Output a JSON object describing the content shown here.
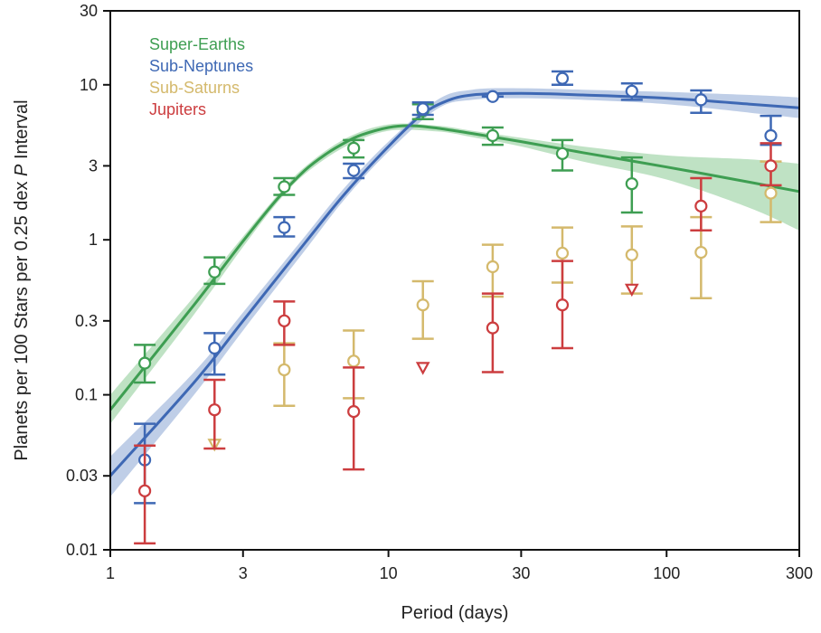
{
  "chart_data": {
    "type": "scatter",
    "xlabel": "Period (days)",
    "ylabel_prefix": "Planets per 100 Stars per 0.25 dex ",
    "ylabel_italic": "P",
    "ylabel_suffix": " Interval",
    "xscale": "log",
    "yscale": "log",
    "xlim": [
      1,
      300
    ],
    "ylim": [
      0.01,
      30
    ],
    "xticks": [
      1,
      3,
      10,
      30,
      100,
      300
    ],
    "xtick_labels": [
      "1",
      "3",
      "10",
      "30",
      "100",
      "300"
    ],
    "yticks": [
      0.01,
      0.03,
      0.1,
      0.3,
      1,
      3,
      10,
      30
    ],
    "ytick_labels": [
      "0.01",
      "0.03",
      "0.1",
      "0.3",
      "1",
      "3",
      "10",
      "30"
    ],
    "grid": false,
    "legend_position": "top-left",
    "series": [
      {
        "name": "Super-Earths",
        "color": "#3e9e52",
        "band_color": "#a9d8b0",
        "points": [
          {
            "x": 1.33,
            "y": 0.16,
            "lo": 0.12,
            "hi": 0.21
          },
          {
            "x": 2.37,
            "y": 0.62,
            "lo": 0.52,
            "hi": 0.77
          },
          {
            "x": 4.22,
            "y": 2.2,
            "lo": 1.95,
            "hi": 2.5
          },
          {
            "x": 7.5,
            "y": 3.9,
            "lo": 3.4,
            "hi": 4.4
          },
          {
            "x": 13.3,
            "y": 6.8,
            "lo": 6.0,
            "hi": 7.5
          },
          {
            "x": 23.7,
            "y": 4.7,
            "lo": 4.1,
            "hi": 5.3
          },
          {
            "x": 42.2,
            "y": 3.6,
            "lo": 2.8,
            "hi": 4.4
          },
          {
            "x": 75,
            "y": 2.3,
            "lo": 1.5,
            "hi": 3.4
          }
        ],
        "fit": [
          [
            1,
            0.08
          ],
          [
            2,
            0.38
          ],
          [
            3,
            0.98
          ],
          [
            4,
            1.85
          ],
          [
            5,
            2.8
          ],
          [
            6,
            3.6
          ],
          [
            7,
            4.25
          ],
          [
            8,
            4.75
          ],
          [
            10,
            5.3
          ],
          [
            12,
            5.45
          ],
          [
            15,
            5.25
          ],
          [
            20,
            4.85
          ],
          [
            30,
            4.3
          ],
          [
            50,
            3.65
          ],
          [
            100,
            2.95
          ],
          [
            200,
            2.35
          ],
          [
            300,
            2.05
          ]
        ],
        "band": [
          [
            1,
            0.1,
            0.065
          ],
          [
            2,
            0.43,
            0.33
          ],
          [
            3,
            1.05,
            0.9
          ],
          [
            4,
            1.95,
            1.75
          ],
          [
            5,
            2.95,
            2.65
          ],
          [
            7,
            4.5,
            4.0
          ],
          [
            10,
            5.55,
            5.05
          ],
          [
            15,
            5.45,
            5.0
          ],
          [
            20,
            5.05,
            4.6
          ],
          [
            30,
            4.55,
            4.0
          ],
          [
            50,
            4.0,
            3.2
          ],
          [
            100,
            3.5,
            2.45
          ],
          [
            200,
            3.3,
            1.6
          ],
          [
            300,
            3.1,
            1.15
          ]
        ]
      },
      {
        "name": "Sub-Neptunes",
        "color": "#3e68b4",
        "band_color": "#a9bedf",
        "points": [
          {
            "x": 1.33,
            "y": 0.038,
            "lo": 0.02,
            "hi": 0.065
          },
          {
            "x": 2.37,
            "y": 0.2,
            "lo": 0.135,
            "hi": 0.25
          },
          {
            "x": 4.22,
            "y": 1.2,
            "lo": 1.05,
            "hi": 1.4
          },
          {
            "x": 7.5,
            "y": 2.8,
            "lo": 2.5,
            "hi": 3.1
          },
          {
            "x": 13.3,
            "y": 7.0,
            "lo": 6.4,
            "hi": 7.7
          },
          {
            "x": 23.7,
            "y": 8.4,
            "lo": 8.4,
            "hi": 8.4
          },
          {
            "x": 42.2,
            "y": 11.0,
            "lo": 10.0,
            "hi": 12.2
          },
          {
            "x": 75,
            "y": 9.1,
            "lo": 8.0,
            "hi": 10.2
          },
          {
            "x": 133,
            "y": 8.0,
            "lo": 6.6,
            "hi": 9.2
          },
          {
            "x": 237,
            "y": 4.7,
            "lo": 4.1,
            "hi": 6.3
          }
        ],
        "fit": [
          [
            1,
            0.03
          ],
          [
            2,
            0.12
          ],
          [
            3,
            0.3
          ],
          [
            5,
            0.95
          ],
          [
            7,
            2.0
          ],
          [
            10,
            4.0
          ],
          [
            13,
            6.3
          ],
          [
            16,
            7.8
          ],
          [
            20,
            8.6
          ],
          [
            30,
            8.8
          ],
          [
            50,
            8.6
          ],
          [
            100,
            8.2
          ],
          [
            200,
            7.5
          ],
          [
            300,
            7.1
          ]
        ],
        "band": [
          [
            1,
            0.04,
            0.022
          ],
          [
            2,
            0.14,
            0.1
          ],
          [
            3,
            0.34,
            0.26
          ],
          [
            5,
            1.05,
            0.85
          ],
          [
            7,
            2.2,
            1.85
          ],
          [
            10,
            4.3,
            3.7
          ],
          [
            15,
            8.0,
            7.0
          ],
          [
            20,
            9.3,
            8.0
          ],
          [
            30,
            9.5,
            8.2
          ],
          [
            50,
            9.3,
            8.0
          ],
          [
            100,
            9.0,
            7.5
          ],
          [
            200,
            8.6,
            6.6
          ],
          [
            300,
            8.3,
            6.1
          ]
        ]
      },
      {
        "name": "Sub-Saturns",
        "color": "#d4b96c",
        "points": [
          {
            "x": 2.37,
            "y": 0.048,
            "limit": true
          },
          {
            "x": 4.22,
            "y": 0.145,
            "lo": 0.085,
            "hi": 0.215
          },
          {
            "x": 7.5,
            "y": 0.165,
            "lo": 0.095,
            "hi": 0.26
          },
          {
            "x": 13.3,
            "y": 0.38,
            "lo": 0.23,
            "hi": 0.54
          },
          {
            "x": 23.7,
            "y": 0.67,
            "lo": 0.43,
            "hi": 0.93
          },
          {
            "x": 42.2,
            "y": 0.82,
            "lo": 0.53,
            "hi": 1.2
          },
          {
            "x": 75,
            "y": 0.8,
            "lo": 0.45,
            "hi": 1.22
          },
          {
            "x": 133,
            "y": 0.83,
            "lo": 0.42,
            "hi": 1.4
          },
          {
            "x": 237,
            "y": 2.0,
            "lo": 1.3,
            "hi": 3.2
          }
        ]
      },
      {
        "name": "Jupiters",
        "color": "#cc3d3f",
        "points": [
          {
            "x": 1.33,
            "y": 0.024,
            "lo": 0.011,
            "hi": 0.047
          },
          {
            "x": 2.37,
            "y": 0.08,
            "lo": 0.045,
            "hi": 0.125
          },
          {
            "x": 4.22,
            "y": 0.3,
            "lo": 0.21,
            "hi": 0.4
          },
          {
            "x": 7.5,
            "y": 0.078,
            "lo": 0.033,
            "hi": 0.15
          },
          {
            "x": 13.3,
            "y": 0.15,
            "limit": true
          },
          {
            "x": 23.7,
            "y": 0.27,
            "lo": 0.14,
            "hi": 0.45
          },
          {
            "x": 42.2,
            "y": 0.38,
            "lo": 0.2,
            "hi": 0.73
          },
          {
            "x": 75,
            "y": 0.48,
            "limit": true
          },
          {
            "x": 133,
            "y": 1.65,
            "lo": 1.15,
            "hi": 2.5
          },
          {
            "x": 237,
            "y": 3.0,
            "lo": 2.25,
            "hi": 4.2
          }
        ]
      }
    ]
  }
}
